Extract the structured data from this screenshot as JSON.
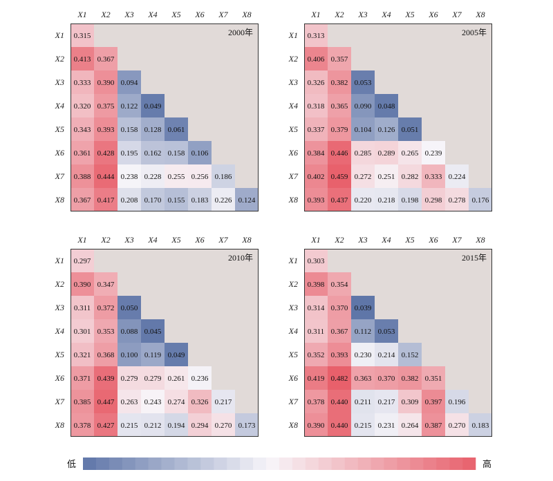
{
  "chart_data": [
    {
      "type": "heatmap",
      "title": "2000年",
      "row_labels": [
        "X1",
        "X2",
        "X3",
        "X4",
        "X5",
        "X6",
        "X7",
        "X8"
      ],
      "col_labels": [
        "X1",
        "X2",
        "X3",
        "X4",
        "X5",
        "X6",
        "X7",
        "X8"
      ],
      "values": [
        [
          0.315
        ],
        [
          0.413,
          0.367
        ],
        [
          0.333,
          0.39,
          0.094
        ],
        [
          0.32,
          0.375,
          0.122,
          0.049
        ],
        [
          0.343,
          0.393,
          0.158,
          0.128,
          0.061
        ],
        [
          0.361,
          0.428,
          0.195,
          0.162,
          0.158,
          0.106
        ],
        [
          0.388,
          0.444,
          0.238,
          0.228,
          0.255,
          0.256,
          0.186
        ],
        [
          0.367,
          0.417,
          0.208,
          0.17,
          0.155,
          0.183,
          0.226,
          0.124
        ]
      ],
      "labels": [
        [
          "0.315"
        ],
        [
          "0.413",
          "0.367"
        ],
        [
          "0.333",
          "0.390",
          "0.094"
        ],
        [
          "0.320",
          "0.375",
          "0.122",
          "0.049"
        ],
        [
          "0.343",
          "0.393",
          "0.158",
          "0.128",
          "0.061"
        ],
        [
          "0.361",
          "0.428",
          "0.195",
          "0.162",
          "0.158",
          "0.106"
        ],
        [
          "0.388",
          "0.444",
          "0.238",
          "0.228",
          "0.255",
          "0.256",
          "0.186"
        ],
        [
          "0.367",
          "0.417",
          "0.208",
          "0.170",
          "0.155",
          "0.183",
          "0.226",
          "0.124"
        ]
      ]
    },
    {
      "type": "heatmap",
      "title": "2005年",
      "row_labels": [
        "X1",
        "X2",
        "X3",
        "X4",
        "X5",
        "X6",
        "X7",
        "X8"
      ],
      "col_labels": [
        "X1",
        "X2",
        "X3",
        "X4",
        "X5",
        "X6",
        "X7",
        "X8"
      ],
      "values": [
        [
          0.313
        ],
        [
          0.406,
          0.357
        ],
        [
          0.326,
          0.382,
          0.053
        ],
        [
          0.318,
          0.365,
          0.09,
          0.048
        ],
        [
          0.337,
          0.379,
          0.104,
          0.126,
          0.051
        ],
        [
          0.384,
          0.446,
          0.285,
          0.289,
          0.265,
          0.239
        ],
        [
          0.402,
          0.459,
          0.272,
          0.251,
          0.282,
          0.333,
          0.224
        ],
        [
          0.393,
          0.437,
          0.22,
          0.218,
          0.198,
          0.298,
          0.278,
          0.176
        ]
      ],
      "labels": [
        [
          "0.313"
        ],
        [
          "0.406",
          "0.357"
        ],
        [
          "0.326",
          "0.382",
          "0.053"
        ],
        [
          "0.318",
          "0.365",
          "0.090",
          "0.048"
        ],
        [
          "0.337",
          "0.379",
          "0.104",
          "0.126",
          "0.051"
        ],
        [
          "0.384",
          "0.446",
          "0.285",
          "0.289",
          "0.265",
          "0.239"
        ],
        [
          "0.402",
          "0.459",
          "0.272",
          "0.251",
          "0.282",
          "0.333",
          "0.224"
        ],
        [
          "0.393",
          "0.437",
          "0.220",
          "0.218",
          "0.198",
          "0.298",
          "0.278",
          "0.176"
        ]
      ]
    },
    {
      "type": "heatmap",
      "title": "2010年",
      "row_labels": [
        "X1",
        "X2",
        "X3",
        "X4",
        "X5",
        "X6",
        "X7",
        "X8"
      ],
      "col_labels": [
        "X1",
        "X2",
        "X3",
        "X4",
        "X5",
        "X6",
        "X7",
        "X8"
      ],
      "values": [
        [
          0.297
        ],
        [
          0.39,
          0.347
        ],
        [
          0.311,
          0.372,
          0.05
        ],
        [
          0.301,
          0.353,
          0.088,
          0.045
        ],
        [
          0.321,
          0.368,
          0.1,
          0.119,
          0.049
        ],
        [
          0.371,
          0.439,
          0.279,
          0.279,
          0.261,
          0.236
        ],
        [
          0.385,
          0.447,
          0.263,
          0.243,
          0.274,
          0.326,
          0.217
        ],
        [
          0.378,
          0.427,
          0.215,
          0.212,
          0.194,
          0.294,
          0.27,
          0.173
        ]
      ],
      "labels": [
        [
          "0.297"
        ],
        [
          "0.390",
          "0.347"
        ],
        [
          "0.311",
          "0.372",
          "0.050"
        ],
        [
          "0.301",
          "0.353",
          "0.088",
          "0.045"
        ],
        [
          "0.321",
          "0.368",
          "0.100",
          "0.119",
          "0.049"
        ],
        [
          "0.371",
          "0.439",
          "0.279",
          "0.279",
          "0.261",
          "0.236"
        ],
        [
          "0.385",
          "0.447",
          "0.263",
          "0.243",
          "0.274",
          "0.326",
          "0.217"
        ],
        [
          "0.378",
          "0.427",
          "0.215",
          "0.212",
          "0.194",
          "0.294",
          "0.270",
          "0.173"
        ]
      ]
    },
    {
      "type": "heatmap",
      "title": "2015年",
      "row_labels": [
        "X1",
        "X2",
        "X3",
        "X4",
        "X5",
        "X6",
        "X7",
        "X8"
      ],
      "col_labels": [
        "X1",
        "X2",
        "X3",
        "X4",
        "X5",
        "X6",
        "X7",
        "X8"
      ],
      "values": [
        [
          0.303
        ],
        [
          0.398,
          0.354
        ],
        [
          0.314,
          0.37,
          0.039
        ],
        [
          0.311,
          0.367,
          0.112,
          0.053
        ],
        [
          0.352,
          0.393,
          0.23,
          0.214,
          0.152
        ],
        [
          0.419,
          0.482,
          0.363,
          0.37,
          0.382,
          0.351
        ],
        [
          0.378,
          0.44,
          0.211,
          0.217,
          0.309,
          0.397,
          0.196
        ],
        [
          0.39,
          0.44,
          0.215,
          0.231,
          0.264,
          0.387,
          0.27,
          0.183
        ]
      ],
      "labels": [
        [
          "0.303"
        ],
        [
          "0.398",
          "0.354"
        ],
        [
          "0.314",
          "0.370",
          "0.039"
        ],
        [
          "0.311",
          "0.367",
          "0.112",
          "0.053"
        ],
        [
          "0.352",
          "0.393",
          "0.230",
          "0.214",
          "0.152"
        ],
        [
          "0.419",
          "0.482",
          "0.363",
          "0.370",
          "0.382",
          "0.351"
        ],
        [
          "0.378",
          "0.440",
          "0.211",
          "0.217",
          "0.309",
          "0.397",
          "0.196"
        ],
        [
          "0.390",
          "0.440",
          "0.215",
          "0.231",
          "0.264",
          "0.387",
          "0.270",
          "0.183"
        ]
      ]
    }
  ],
  "legend": {
    "low_label": "低",
    "high_label": "高",
    "steps": 30
  },
  "colors": {
    "low": "#5f76a8",
    "mid": "#f7f5f9",
    "high": "#e8606b",
    "empty_area": "#e1dad8",
    "frame": "#333333"
  }
}
